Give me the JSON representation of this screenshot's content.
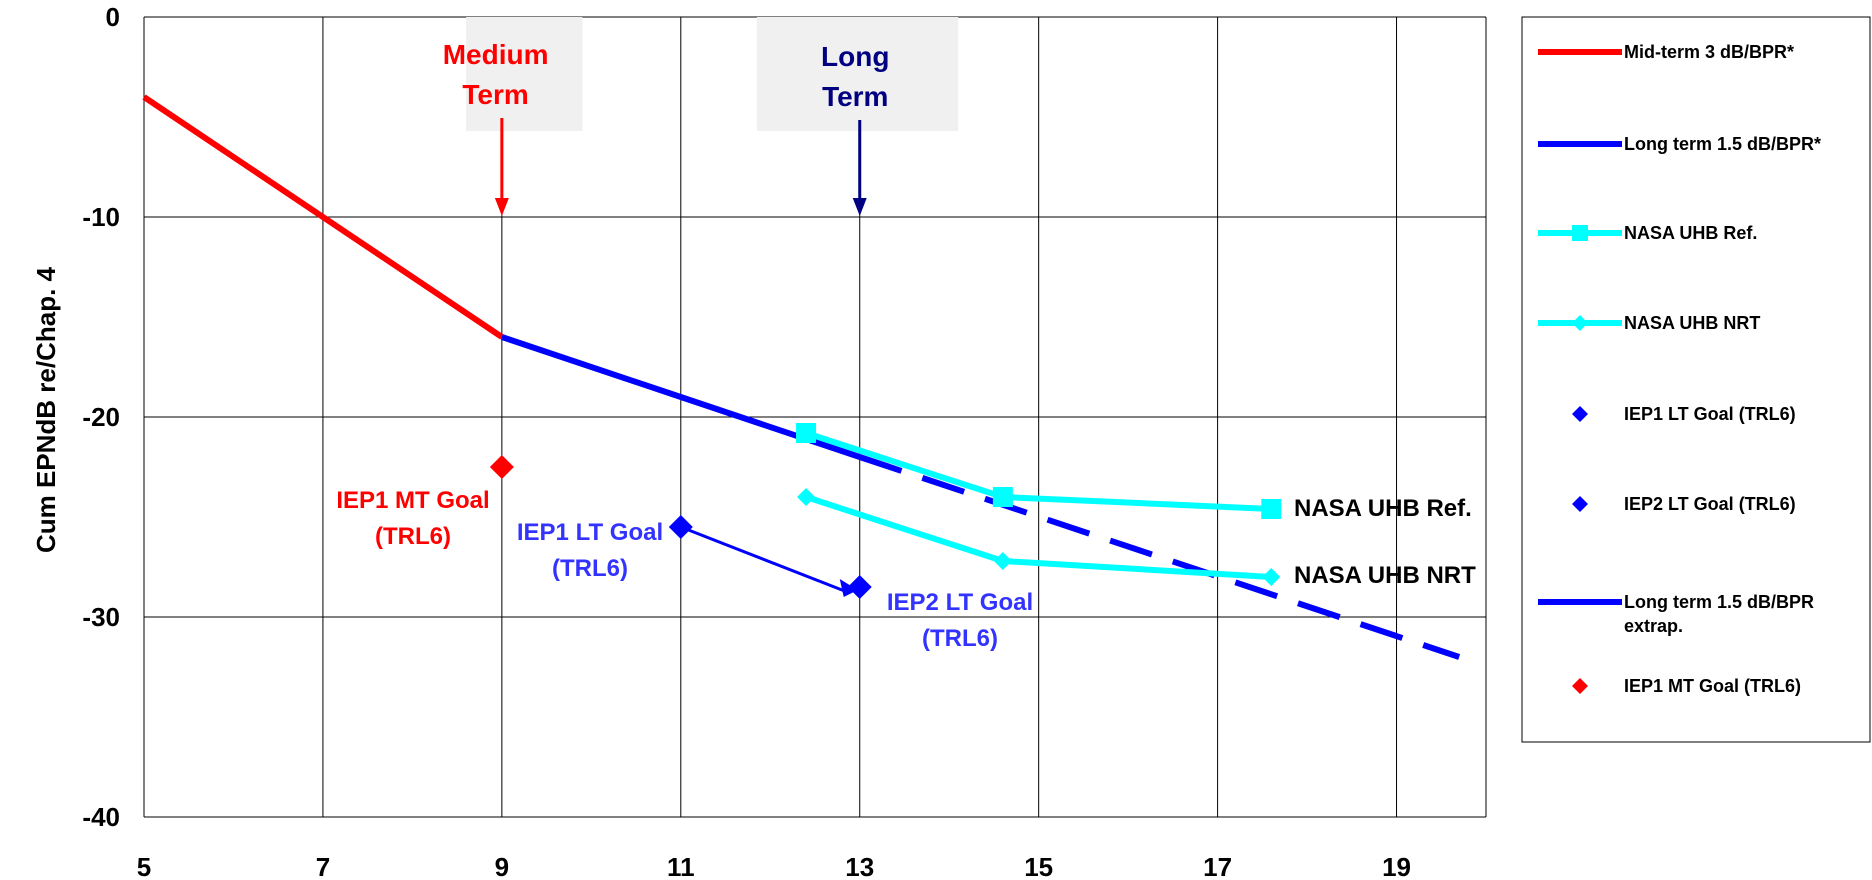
{
  "chart_data": {
    "type": "line",
    "title": "",
    "xlabel": "",
    "ylabel": "Cum EPNdB re/Chap. 4",
    "xlim": [
      5,
      20
    ],
    "ylim": [
      -40,
      0
    ],
    "x_ticks": [
      "5",
      "7",
      "9",
      "11",
      "13",
      "15",
      "17",
      "19"
    ],
    "y_ticks": [
      "0",
      "-10",
      "-20",
      "-30",
      "-40"
    ],
    "grid": true,
    "legend_position": "right",
    "colors": {
      "red": "#ff0000",
      "blue": "#0000ff",
      "cyan": "#00ffff",
      "navy": "#000080",
      "ann_blue": "#3333ff"
    },
    "series": [
      {
        "name": "Mid-term 3 dB/BPR*",
        "style": "line",
        "color": "#ff0000",
        "points": [
          [
            5,
            -4
          ],
          [
            7,
            -10
          ],
          [
            9,
            -16
          ]
        ]
      },
      {
        "name": "Long term 1.5 dB/BPR*",
        "style": "line",
        "color": "#0000ff",
        "points": [
          [
            9,
            -16
          ],
          [
            11,
            -19
          ],
          [
            13,
            -22
          ]
        ]
      },
      {
        "name": "NASA UHB Ref.",
        "style": "line-square",
        "color": "#00ffff",
        "points": [
          [
            12.4,
            -20.8
          ],
          [
            14.6,
            -24
          ],
          [
            17.6,
            -24.6
          ]
        ]
      },
      {
        "name": "NASA UHB NRT",
        "style": "line-diamond",
        "color": "#00ffff",
        "points": [
          [
            12.4,
            -24
          ],
          [
            14.6,
            -27.2
          ],
          [
            17.6,
            -28
          ]
        ]
      },
      {
        "name": "IEP1 LT Goal (TRL6)",
        "style": "marker",
        "color": "#0000ff",
        "points": [
          [
            11,
            -25.5
          ]
        ]
      },
      {
        "name": "IEP2 LT Goal (TRL6)",
        "style": "marker",
        "color": "#0000ff",
        "points": [
          [
            13,
            -28.5
          ]
        ]
      },
      {
        "name": "Long term 1.5 dB/BPR extrap.",
        "style": "dashed",
        "color": "#0000ff",
        "points": [
          [
            13,
            -22
          ],
          [
            19.7,
            -32
          ]
        ]
      },
      {
        "name": "IEP1 MT Goal (TRL6)",
        "style": "marker",
        "color": "#ff0000",
        "points": [
          [
            9,
            -22.5
          ]
        ]
      }
    ],
    "legend_items": [
      {
        "label": "Mid-term 3 dB/BPR*",
        "kind": "line",
        "color": "#ff0000"
      },
      {
        "label": "Long term 1.5 dB/BPR*",
        "kind": "line",
        "color": "#0000ff"
      },
      {
        "label": "NASA UHB Ref.",
        "kind": "line-square",
        "color": "#00ffff"
      },
      {
        "label": "NASA UHB NRT",
        "kind": "line-diamond",
        "color": "#00ffff"
      },
      {
        "label": "IEP1 LT Goal (TRL6)",
        "kind": "diamond",
        "color": "#0000ff"
      },
      {
        "label": "IEP2 LT Goal (TRL6)",
        "kind": "diamond",
        "color": "#0000ff"
      },
      {
        "label": [
          "Long term 1.5 dB/BPR",
          "extrap."
        ],
        "kind": "dashed",
        "color": "#0000ff"
      },
      {
        "label": "IEP1 MT Goal (TRL6)",
        "kind": "diamond",
        "color": "#ff0000"
      }
    ],
    "annotations": {
      "medium_term": {
        "lines": [
          "Medium",
          "Term"
        ],
        "color": "#ff0000",
        "x": 9
      },
      "long_term": {
        "lines": [
          "Long",
          "Term"
        ],
        "color": "#000080",
        "x": 13
      },
      "iep1_mt": {
        "lines": [
          "IEP1 MT Goal",
          "(TRL6)"
        ],
        "color": "#ff0000"
      },
      "iep1_lt": {
        "lines": [
          "IEP1 LT Goal",
          "(TRL6)"
        ],
        "color": "#3333ff"
      },
      "iep2_lt": {
        "lines": [
          "IEP2 LT Goal",
          "(TRL6)"
        ],
        "color": "#3333ff"
      },
      "nasa_ref": {
        "lines": [
          "NASA UHB Ref."
        ],
        "color": "#000000"
      },
      "nasa_nrt": {
        "lines": [
          "NASA UHB NRT"
        ],
        "color": "#000000"
      }
    }
  }
}
